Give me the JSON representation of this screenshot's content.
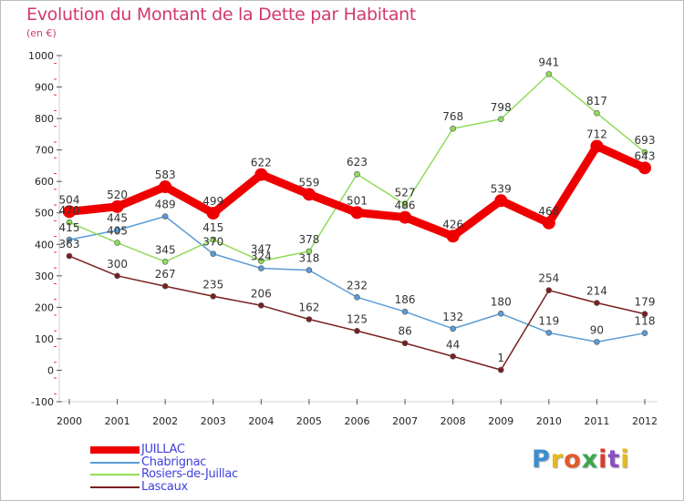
{
  "title": "Evolution du Montant de la Dette par Habitant",
  "unit_label": "(en €)",
  "logo": {
    "text": "Proxiti",
    "letter_colors": [
      "#3a8fd0",
      "#e8b81c",
      "#e05a28",
      "#3aa84a",
      "#d93a2a",
      "#8a4fc0",
      "#e8b81c"
    ]
  },
  "chart_data": {
    "type": "line",
    "title": "Evolution du Montant de la Dette par Habitant",
    "subtitle": "(en €)",
    "xlabel": "",
    "ylabel": "",
    "x": [
      2000,
      2001,
      2002,
      2003,
      2004,
      2005,
      2006,
      2007,
      2008,
      2009,
      2010,
      2011,
      2012
    ],
    "ylim": [
      -100,
      1000
    ],
    "yticks": [
      -100,
      0,
      100,
      200,
      300,
      400,
      500,
      600,
      700,
      800,
      900,
      1000
    ],
    "grid": false,
    "legend_position": "bottom-left",
    "series": [
      {
        "name": "JUILLAC",
        "color": "#ee0000",
        "values": [
          504,
          520,
          583,
          499,
          622,
          559,
          501,
          486,
          426,
          539,
          468,
          712,
          643
        ]
      },
      {
        "name": "Chabrignac",
        "color": "#5b9bd5",
        "values": [
          415,
          445,
          489,
          370,
          324,
          318,
          232,
          186,
          132,
          180,
          119,
          90,
          118
        ]
      },
      {
        "name": "Rosiers-de-Juillac",
        "color": "#8fdc5a",
        "values": [
          470,
          405,
          345,
          415,
          347,
          378,
          623,
          527,
          768,
          798,
          941,
          817,
          693
        ]
      },
      {
        "name": "Lascaux",
        "color": "#7a1f1f",
        "values": [
          363,
          300,
          267,
          235,
          206,
          162,
          125,
          86,
          44,
          1,
          254,
          214,
          179
        ]
      }
    ]
  }
}
